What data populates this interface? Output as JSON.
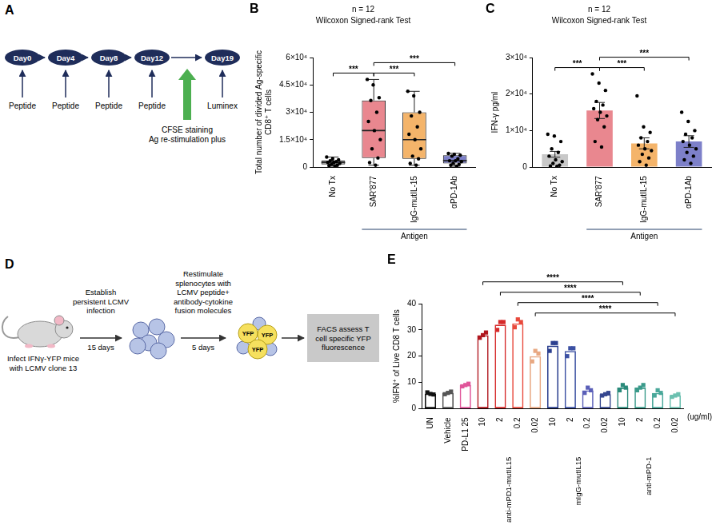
{
  "chart_data": [
    {
      "type": "box",
      "panel_label": "B",
      "title": "n = 12",
      "subtitle": "Wilcoxon Signed-rank Test",
      "y_label": "Total number of divided Ag-specific CD8⁺ T cells",
      "categories": [
        "No Tx",
        "SAR'877",
        "IgG-mutIL-15",
        "αPD-1Ab"
      ],
      "colors": [
        "#c8c8c8",
        "#e9878f",
        "#f4b46a",
        "#7d80c9"
      ],
      "boxes": [
        {
          "min": 500,
          "q1": 1500,
          "median": 2500,
          "q3": 3500,
          "max": 5500
        },
        {
          "min": 1000,
          "q1": 5000,
          "median": 20000,
          "q3": 36500,
          "max": 48000
        },
        {
          "min": 1000,
          "q1": 4500,
          "median": 15000,
          "q3": 30000,
          "max": 41500
        },
        {
          "min": 500,
          "q1": 2000,
          "median": 3500,
          "q3": 6500,
          "max": 7500
        }
      ],
      "points": [
        [
          5500,
          4500,
          4000,
          3500,
          3000,
          2500,
          2500,
          2000,
          1500,
          1000,
          800,
          500
        ],
        [
          48000,
          45000,
          38000,
          36500,
          30000,
          25000,
          20000,
          15000,
          10000,
          5000,
          2500,
          1000
        ],
        [
          41500,
          39000,
          30000,
          28000,
          22000,
          18000,
          15000,
          10000,
          6000,
          4500,
          2000,
          1000
        ],
        [
          7500,
          7000,
          6500,
          6000,
          4500,
          3500,
          3500,
          3000,
          2000,
          1500,
          1000,
          500
        ]
      ],
      "ylim": [
        0,
        60000
      ],
      "yticks": [
        0,
        {
          "value": 15000,
          "label": "1.5×10⁴"
        },
        {
          "value": 30000,
          "label": "3×10⁴"
        },
        {
          "value": 45000,
          "label": "4.5×10⁴"
        },
        {
          "value": 60000,
          "label": "6×10⁴"
        }
      ],
      "groups": [
        {
          "label": "Antigen",
          "from": 1,
          "to": 3
        }
      ],
      "significance": [
        {
          "from": 1,
          "to": 2,
          "label": "***"
        },
        {
          "from": 0,
          "to": 1,
          "label": "***"
        },
        {
          "from": 1,
          "to": 3,
          "label": "***"
        }
      ],
      "grid": false
    },
    {
      "type": "bar",
      "panel_label": "C",
      "title": "n = 12",
      "subtitle": "Wilcoxon Signed-rank Test",
      "y_label": "IFN-γ pg/ml",
      "categories": [
        "No Tx",
        "SAR'877",
        "IgG-mutIL-15",
        "αPD-1Ab"
      ],
      "colors": [
        "#c8c8c8",
        "#e9878f",
        "#f4b46a",
        "#7d80c9"
      ],
      "values": [
        3500,
        15500,
        6500,
        7000
      ],
      "errors": [
        800,
        2200,
        1500,
        1600
      ],
      "points": [
        [
          9000,
          8500,
          7000,
          5000,
          4000,
          3000,
          2000,
          1500,
          1000,
          500,
          300,
          200
        ],
        [
          25500,
          23000,
          21000,
          18000,
          17000,
          16000,
          15000,
          14000,
          13000,
          11000,
          7000,
          5500
        ],
        [
          19500,
          11000,
          9500,
          8000,
          7000,
          6000,
          5000,
          4500,
          3500,
          2500,
          1500,
          500
        ],
        [
          15000,
          12500,
          10000,
          9000,
          8000,
          7000,
          6000,
          5000,
          4000,
          3000,
          2000,
          1000
        ]
      ],
      "ylim": [
        0,
        30000
      ],
      "yticks": [
        0,
        {
          "value": 10000,
          "label": "1×10⁴"
        },
        {
          "value": 20000,
          "label": "2×10⁴"
        },
        {
          "value": 30000,
          "label": "3×10⁴"
        }
      ],
      "groups": [
        {
          "label": "Antigen",
          "from": 1,
          "to": 3
        }
      ],
      "significance": [
        {
          "from": 1,
          "to": 2,
          "label": "***"
        },
        {
          "from": 0,
          "to": 1,
          "label": "***"
        },
        {
          "from": 1,
          "to": 3,
          "label": "***"
        }
      ],
      "grid": false
    },
    {
      "type": "bar",
      "panel_label": "E",
      "y_label": "%IFN⁺ of Live CD8 T cells",
      "x_label": "(ug/ml)",
      "categories": [
        "UN",
        "Vehicle",
        "PD-L1 25",
        "10",
        "2",
        "0.2",
        "0.02",
        "10",
        "2",
        "0.2",
        "0.02",
        "10",
        "2",
        "0.2",
        "0.02"
      ],
      "colors": [
        "#111111",
        "#555555",
        "#e0559a",
        "#b0161e",
        "#d62a2a",
        "#e8493c",
        "#e8a882",
        "#2b3f8f",
        "#3c51a3",
        "#5a5fb8",
        "#34468f",
        "#2a8a7a",
        "#3a9a8a",
        "#4aa89a",
        "#6cc0b0"
      ],
      "values": [
        5.7,
        6,
        9,
        28,
        32,
        32.5,
        20,
        24,
        22,
        7,
        5.5,
        8,
        8,
        6,
        5
      ],
      "points": [
        [
          6.2,
          5.4,
          5.6
        ],
        [
          5.5,
          6.5,
          6
        ],
        [
          8.5,
          9.5,
          9
        ],
        [
          27,
          29,
          28
        ],
        [
          30,
          33,
          33
        ],
        [
          31,
          33,
          34
        ],
        [
          18,
          21,
          22
        ],
        [
          22,
          25,
          25
        ],
        [
          20,
          23,
          23
        ],
        [
          6,
          7,
          8
        ],
        [
          5,
          6,
          5.5
        ],
        [
          7,
          8,
          9
        ],
        [
          7,
          9,
          8
        ],
        [
          5,
          6,
          7
        ],
        [
          4.5,
          5.5,
          5
        ]
      ],
      "ylim": [
        0,
        40
      ],
      "yticks": [
        0,
        10,
        20,
        30,
        40
      ],
      "groups": [
        {
          "label": "anti-mPD1-mutIL15",
          "from": 3,
          "to": 6
        },
        {
          "label": "mIgG-mutIL15",
          "from": 7,
          "to": 10
        },
        {
          "label": "anti-mPD-1",
          "from": 11,
          "to": 14
        }
      ],
      "significance": [
        {
          "from": 6,
          "to": 14,
          "label": "****"
        },
        {
          "from": 5,
          "to": 13,
          "label": "****"
        },
        {
          "from": 4,
          "to": 12,
          "label": "****"
        },
        {
          "from": 3,
          "to": 11,
          "label": "****"
        }
      ],
      "grid": false
    }
  ],
  "diagrams": [
    {
      "panel_label": "A",
      "timeline": [
        {
          "day": "Day0",
          "below": "Peptide"
        },
        {
          "day": "Day4",
          "below": "Peptide"
        },
        {
          "day": "Day8",
          "below": "Peptide"
        },
        {
          "day": "Day12",
          "below": "Peptide",
          "step_after": [
            "CFSE staining",
            "Ag re-stimulation plus"
          ]
        },
        {
          "day": "Day19",
          "below": "Luminex"
        }
      ]
    },
    {
      "panel_label": "D",
      "infect": "Infect IFNγ-YFP mice with LCMV clone 13",
      "step1": {
        "above": "Establish persistent LCMV infection",
        "below": "15 days"
      },
      "step2": {
        "above": "Restimulate splenocytes with LCMV peptide+ antibody-cytokine fusion molecules",
        "below": "5 days"
      },
      "yfp_labels": [
        "YFP",
        "YFP",
        "YFP"
      ],
      "readout": "FACS assess T cell specific YFP fluorescence"
    }
  ]
}
